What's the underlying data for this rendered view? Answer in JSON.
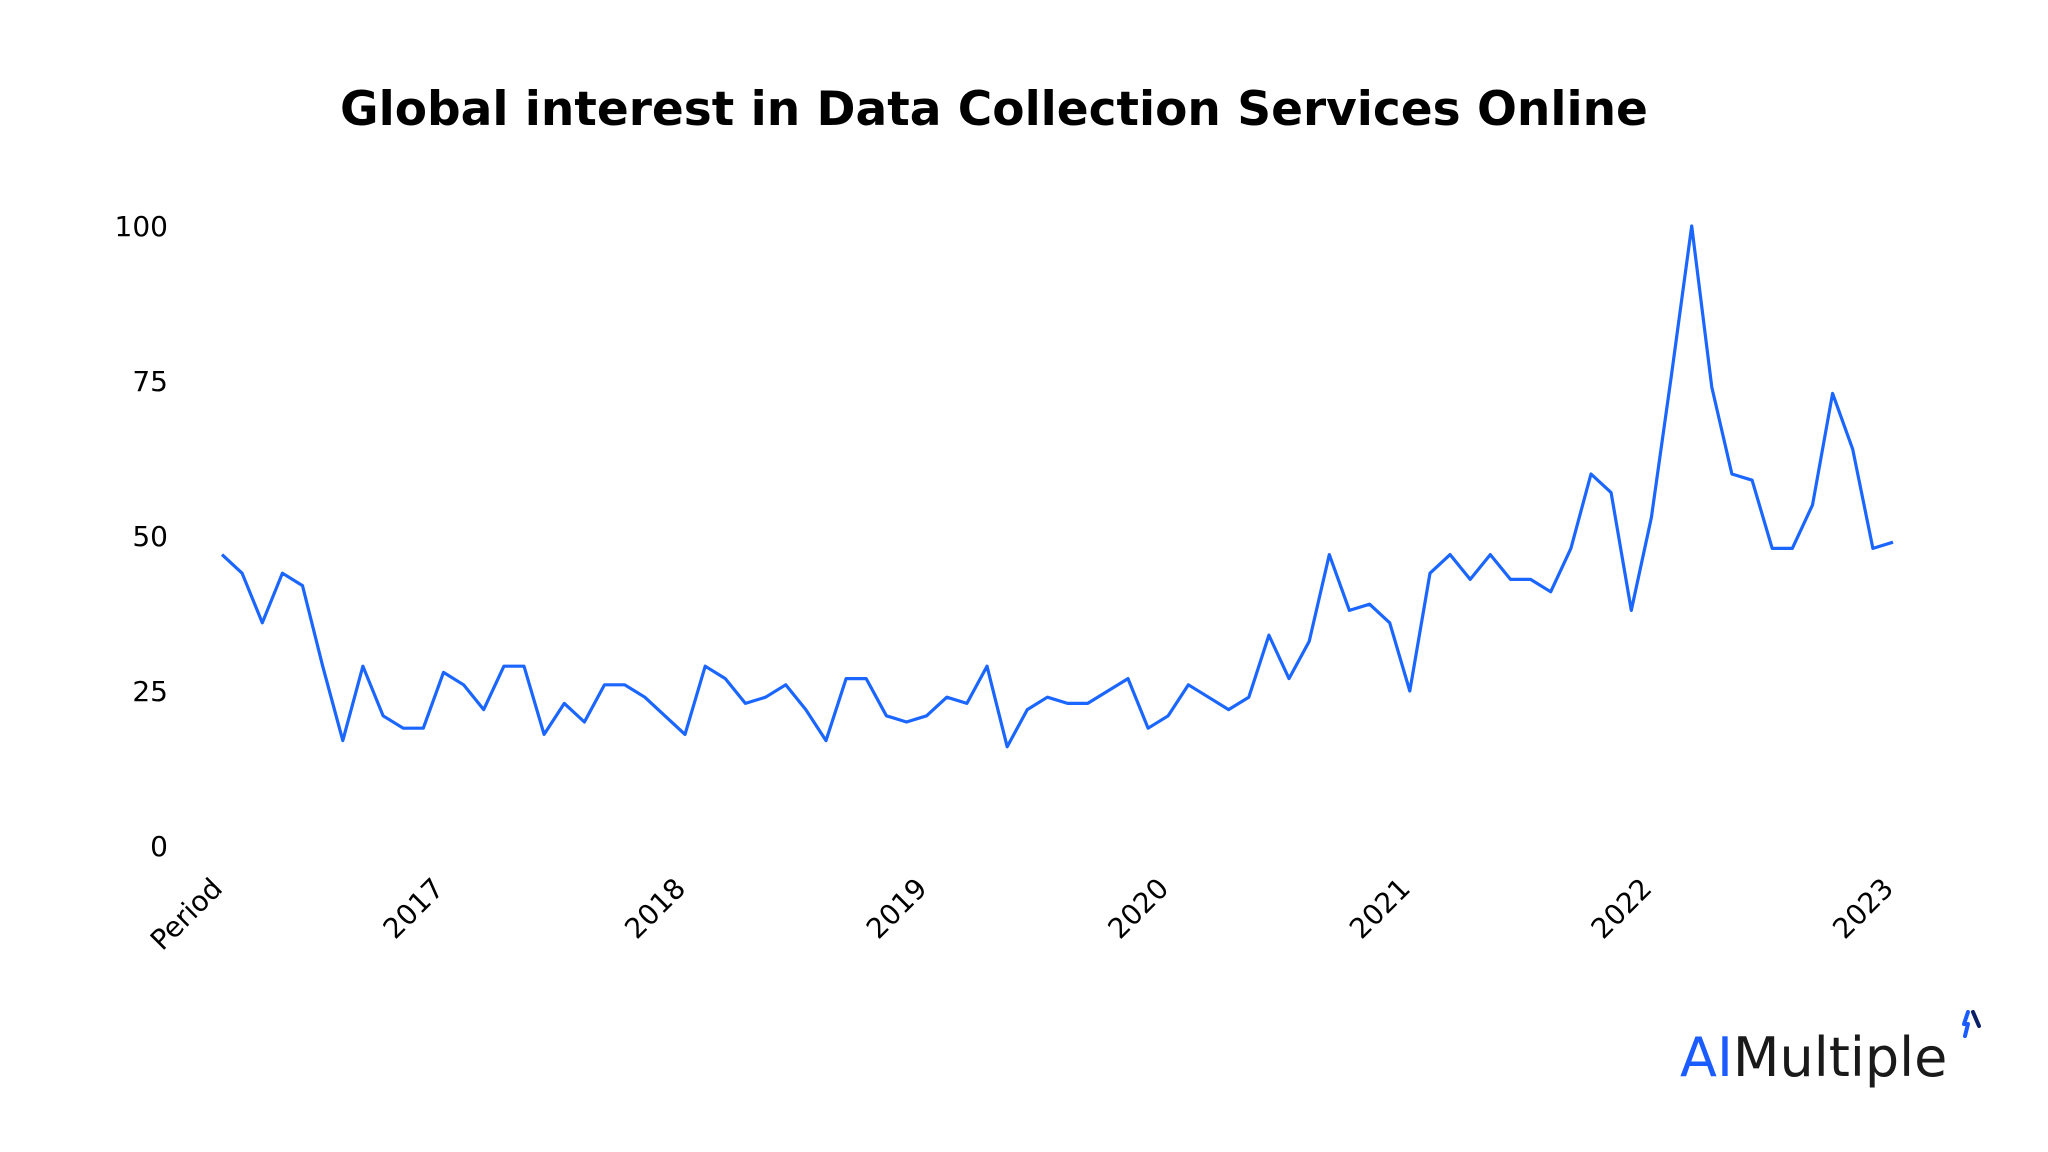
{
  "title": "Global interest in Data Collection Services Online",
  "logo": {
    "part1": "AI",
    "part2": "Multiple"
  },
  "colors": {
    "line": "#1a66ff",
    "logo_accent": "#1a5cff",
    "text": "#000000"
  },
  "chart_data": {
    "type": "line",
    "title": "Global interest in Data Collection Services Online",
    "xlabel": "",
    "ylabel": "",
    "ylim": [
      0,
      100
    ],
    "y_ticks": [
      0,
      25,
      50,
      75,
      100
    ],
    "x_tick_labels": [
      "Period",
      "2017",
      "2018",
      "2019",
      "2020",
      "2021",
      "2022",
      "2023"
    ],
    "x_tick_index": [
      0,
      11,
      23,
      35,
      47,
      59,
      71,
      83
    ],
    "grid": false,
    "series": [
      {
        "values": [
          47,
          44,
          36,
          44,
          42,
          29,
          17,
          29,
          21,
          19,
          19,
          28,
          26,
          22,
          29,
          29,
          18,
          23,
          20,
          26,
          26,
          24,
          21,
          18,
          29,
          27,
          23,
          24,
          26,
          22,
          17,
          27,
          27,
          21,
          20,
          21,
          24,
          23,
          29,
          16,
          22,
          24,
          23,
          23,
          25,
          27,
          19,
          21,
          26,
          24,
          22,
          24,
          34,
          27,
          33,
          47,
          38,
          39,
          36,
          25,
          44,
          47,
          43,
          47,
          43,
          43,
          41,
          48,
          60,
          57,
          38,
          53,
          76,
          100,
          74,
          60,
          59,
          48,
          48,
          55,
          73,
          64,
          48,
          49
        ]
      }
    ]
  }
}
